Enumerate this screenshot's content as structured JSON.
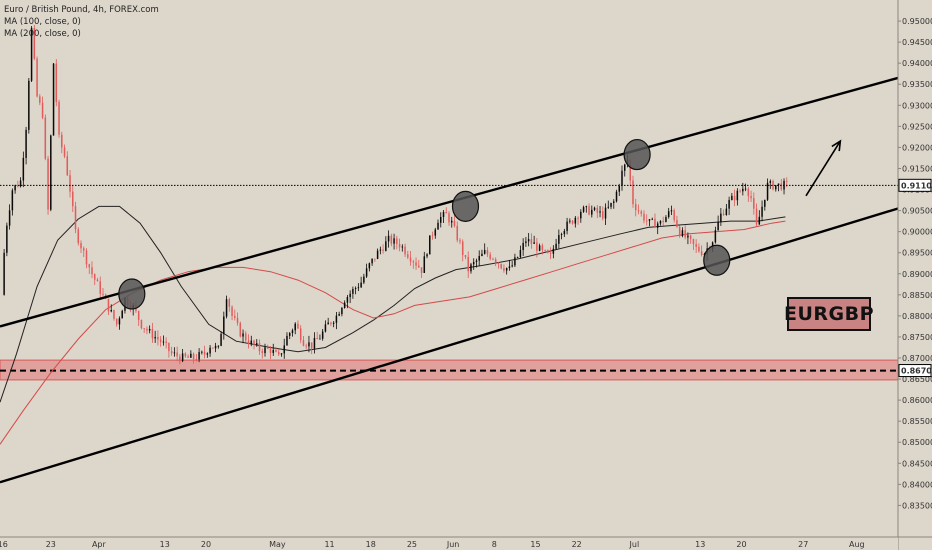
{
  "legend": {
    "line1": "Euro / British Pound, 4h, FOREX.com",
    "line2": "MA (100, close, 0)",
    "line3": "MA (200, close, 0)"
  },
  "badge": {
    "text": "EURGBP",
    "fill": "#c98383",
    "border": "#111111"
  },
  "chart_data": {
    "type": "candlestick",
    "symbol": "EURGBP",
    "timeframe": "4h",
    "ylim": [
      0.8275,
      0.955
    ],
    "y_ticks": [
      0.95,
      0.945,
      0.94,
      0.935,
      0.93,
      0.925,
      0.92,
      0.915,
      0.91,
      0.905,
      0.9,
      0.895,
      0.89,
      0.885,
      0.88,
      0.875,
      0.87,
      0.865,
      0.86,
      0.855,
      0.85,
      0.845,
      0.84,
      0.835
    ],
    "y_tick_labels": [
      "0.95000",
      "0.94500",
      "0.94000",
      "0.93500",
      "0.93000",
      "0.92500",
      "0.92000",
      "0.91500",
      "0.91000",
      "0.90500",
      "0.90000",
      "0.89500",
      "0.89000",
      "0.88500",
      "0.88000",
      "0.87500",
      "0.87000",
      "0.86500",
      "0.86000",
      "0.85500",
      "0.85000",
      "0.84500",
      "0.84000",
      "0.83500"
    ],
    "x_ticks": [
      {
        "label": "16",
        "i": 0
      },
      {
        "label": "23",
        "i": 35
      },
      {
        "label": "Apr",
        "i": 70
      },
      {
        "label": "13",
        "i": 118
      },
      {
        "label": "20",
        "i": 148
      },
      {
        "label": "May",
        "i": 200
      },
      {
        "label": "11",
        "i": 238
      },
      {
        "label": "18",
        "i": 268
      },
      {
        "label": "25",
        "i": 298
      },
      {
        "label": "Jun",
        "i": 328
      },
      {
        "label": "8",
        "i": 358
      },
      {
        "label": "15",
        "i": 388
      },
      {
        "label": "22",
        "i": 418
      },
      {
        "label": "Jul",
        "i": 460
      },
      {
        "label": "13",
        "i": 508
      },
      {
        "label": "20",
        "i": 538
      },
      {
        "label": "27",
        "i": 583
      },
      {
        "label": "Aug",
        "i": 622
      }
    ],
    "x_range": [
      -2,
      652
    ],
    "keypoints": [
      [
        0,
        0.885
      ],
      [
        3,
        0.9
      ],
      [
        8,
        0.91
      ],
      [
        14,
        0.912
      ],
      [
        18,
        0.925
      ],
      [
        22,
        0.948
      ],
      [
        26,
        0.932
      ],
      [
        30,
        0.928
      ],
      [
        34,
        0.905
      ],
      [
        38,
        0.94
      ],
      [
        42,
        0.922
      ],
      [
        46,
        0.918
      ],
      [
        50,
        0.91
      ],
      [
        54,
        0.9
      ],
      [
        60,
        0.895
      ],
      [
        66,
        0.89
      ],
      [
        72,
        0.886
      ],
      [
        78,
        0.882
      ],
      [
        84,
        0.878
      ],
      [
        90,
        0.884
      ],
      [
        96,
        0.882
      ],
      [
        102,
        0.878
      ],
      [
        108,
        0.876
      ],
      [
        116,
        0.874
      ],
      [
        124,
        0.871
      ],
      [
        132,
        0.87
      ],
      [
        140,
        0.87
      ],
      [
        148,
        0.871
      ],
      [
        152,
        0.873
      ],
      [
        158,
        0.872
      ],
      [
        164,
        0.885
      ],
      [
        168,
        0.88
      ],
      [
        174,
        0.876
      ],
      [
        180,
        0.874
      ],
      [
        188,
        0.872
      ],
      [
        196,
        0.872
      ],
      [
        202,
        0.87
      ],
      [
        208,
        0.875
      ],
      [
        214,
        0.878
      ],
      [
        220,
        0.874
      ],
      [
        226,
        0.873
      ],
      [
        232,
        0.875
      ],
      [
        238,
        0.878
      ],
      [
        244,
        0.88
      ],
      [
        250,
        0.884
      ],
      [
        256,
        0.886
      ],
      [
        262,
        0.888
      ],
      [
        268,
        0.892
      ],
      [
        274,
        0.895
      ],
      [
        282,
        0.898
      ],
      [
        290,
        0.897
      ],
      [
        298,
        0.894
      ],
      [
        306,
        0.891
      ],
      [
        312,
        0.898
      ],
      [
        318,
        0.903
      ],
      [
        324,
        0.904
      ],
      [
        328,
        0.902
      ],
      [
        334,
        0.897
      ],
      [
        340,
        0.891
      ],
      [
        346,
        0.893
      ],
      [
        352,
        0.895
      ],
      [
        358,
        0.894
      ],
      [
        364,
        0.892
      ],
      [
        370,
        0.891
      ],
      [
        376,
        0.894
      ],
      [
        382,
        0.898
      ],
      [
        388,
        0.897
      ],
      [
        394,
        0.895
      ],
      [
        400,
        0.894
      ],
      [
        406,
        0.9
      ],
      [
        414,
        0.902
      ],
      [
        422,
        0.905
      ],
      [
        430,
        0.905
      ],
      [
        438,
        0.904
      ],
      [
        446,
        0.907
      ],
      [
        452,
        0.914
      ],
      [
        456,
        0.917
      ],
      [
        460,
        0.907
      ],
      [
        466,
        0.904
      ],
      [
        472,
        0.902
      ],
      [
        480,
        0.902
      ],
      [
        488,
        0.905
      ],
      [
        494,
        0.9
      ],
      [
        500,
        0.898
      ],
      [
        506,
        0.896
      ],
      [
        512,
        0.895
      ],
      [
        518,
        0.898
      ],
      [
        524,
        0.904
      ],
      [
        530,
        0.907
      ],
      [
        536,
        0.909
      ],
      [
        542,
        0.911
      ],
      [
        546,
        0.908
      ],
      [
        550,
        0.901
      ],
      [
        554,
        0.906
      ],
      [
        558,
        0.911
      ],
      [
        564,
        0.911
      ],
      [
        570,
        0.911
      ]
    ],
    "last_index": 570,
    "ma100": [
      [
        -2,
        0.8595
      ],
      [
        10,
        0.871
      ],
      [
        25,
        0.887
      ],
      [
        40,
        0.898
      ],
      [
        55,
        0.903
      ],
      [
        70,
        0.906
      ],
      [
        85,
        0.906
      ],
      [
        100,
        0.902
      ],
      [
        115,
        0.895
      ],
      [
        130,
        0.887
      ],
      [
        150,
        0.878
      ],
      [
        170,
        0.874
      ],
      [
        195,
        0.8725
      ],
      [
        215,
        0.8715
      ],
      [
        235,
        0.8725
      ],
      [
        255,
        0.876
      ],
      [
        270,
        0.879
      ],
      [
        285,
        0.8825
      ],
      [
        300,
        0.8865
      ],
      [
        315,
        0.889
      ],
      [
        330,
        0.891
      ],
      [
        350,
        0.892
      ],
      [
        375,
        0.8935
      ],
      [
        400,
        0.8955
      ],
      [
        425,
        0.8975
      ],
      [
        450,
        0.8995
      ],
      [
        470,
        0.901
      ],
      [
        490,
        0.9015
      ],
      [
        510,
        0.902
      ],
      [
        530,
        0.9025
      ],
      [
        550,
        0.9025
      ],
      [
        570,
        0.9035
      ]
    ],
    "ma200": [
      [
        -2,
        0.8495
      ],
      [
        15,
        0.8575
      ],
      [
        35,
        0.8665
      ],
      [
        55,
        0.8745
      ],
      [
        75,
        0.8815
      ],
      [
        95,
        0.8855
      ],
      [
        115,
        0.8885
      ],
      [
        135,
        0.8905
      ],
      [
        155,
        0.8915
      ],
      [
        175,
        0.8915
      ],
      [
        195,
        0.8905
      ],
      [
        215,
        0.8885
      ],
      [
        235,
        0.8855
      ],
      [
        255,
        0.8815
      ],
      [
        270,
        0.8795
      ],
      [
        285,
        0.8805
      ],
      [
        300,
        0.8825
      ],
      [
        320,
        0.8835
      ],
      [
        340,
        0.8845
      ],
      [
        360,
        0.8865
      ],
      [
        380,
        0.8885
      ],
      [
        400,
        0.8905
      ],
      [
        420,
        0.8925
      ],
      [
        440,
        0.8945
      ],
      [
        460,
        0.8965
      ],
      [
        480,
        0.8985
      ],
      [
        500,
        0.8995
      ],
      [
        520,
        0.9
      ],
      [
        540,
        0.9005
      ],
      [
        560,
        0.902
      ],
      [
        570,
        0.9025
      ]
    ],
    "channel_upper": [
      [
        -2,
        0.8775
      ],
      [
        652,
        0.9365
      ]
    ],
    "channel_lower": [
      [
        -2,
        0.8405
      ],
      [
        652,
        0.9055
      ]
    ],
    "circles": [
      {
        "i": 94,
        "y": 0.8852
      },
      {
        "i": 337,
        "y": 0.906
      },
      {
        "i": 462,
        "y": 0.9183
      },
      {
        "i": 520,
        "y": 0.8932
      }
    ],
    "arrow": {
      "from": [
        585,
        0.9085
      ],
      "to": [
        610,
        0.9215
      ]
    },
    "support_zone": {
      "y_top": 0.8695,
      "y_bottom": 0.8648,
      "y_line": 0.867
    },
    "current_price": {
      "value": 0.911,
      "label": "0.91100"
    },
    "zone_price": {
      "value": 0.86702,
      "label": "0.86702"
    },
    "colors": {
      "background": "#ddd6cb",
      "bull": "#0a0a0a",
      "bear": "#e25a5a",
      "ma100": "#222222",
      "ma200": "#d44a4a",
      "channel": "#000000",
      "zone_fill": "#e0a09b",
      "zone_border": "#d65a5a",
      "circle_fill": "#555555"
    }
  }
}
